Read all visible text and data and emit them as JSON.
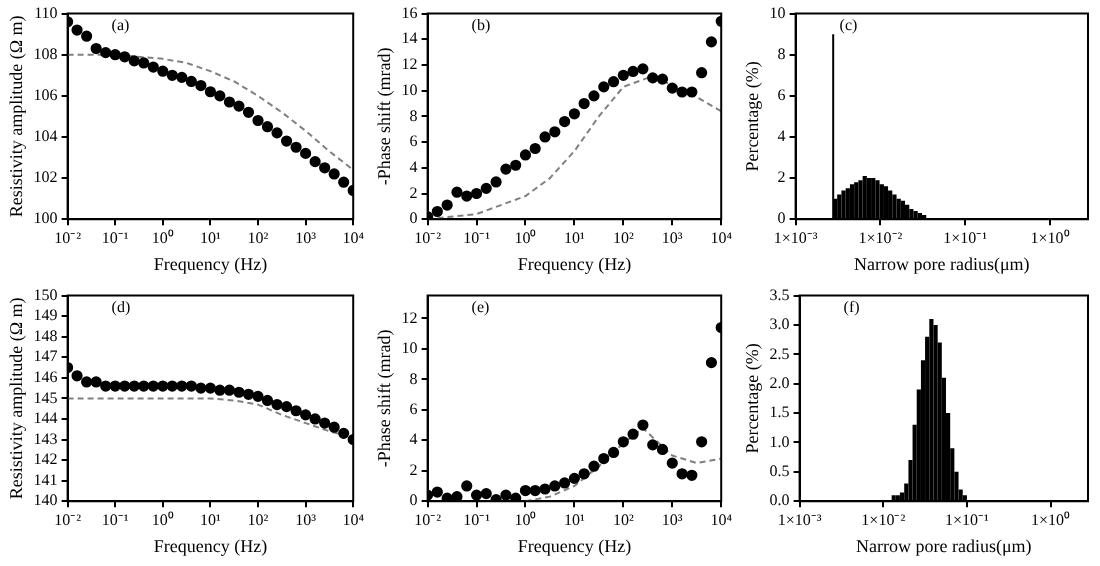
{
  "chart_data": [
    {
      "type": "scatter",
      "xlabel": "Frequency (Hz)",
      "ylabel": "Resistivity amplitude (Ω m)",
      "annotations": [
        "(a)"
      ],
      "log": "x",
      "grid": false,
      "xlim": [
        0.01,
        10000
      ],
      "xticks": [
        {
          "value": 0.01,
          "label": "10⁻²"
        },
        {
          "value": 0.1,
          "label": "10⁻¹"
        },
        {
          "value": 1,
          "label": "10⁰"
        },
        {
          "value": 10,
          "label": "10¹"
        },
        {
          "value": 100,
          "label": "10²"
        },
        {
          "value": 1000,
          "label": "10³"
        },
        {
          "value": 10000,
          "label": "10⁴"
        }
      ],
      "ylim": [
        100,
        110
      ],
      "yticks": [
        100,
        102,
        104,
        106,
        108,
        110
      ],
      "x": [
        0.01,
        0.0158,
        0.0251,
        0.0398,
        0.0631,
        0.1,
        0.158,
        0.251,
        0.398,
        0.631,
        1,
        1.58,
        2.51,
        3.98,
        6.31,
        10,
        15.8,
        25.1,
        39.8,
        63.1,
        100,
        158,
        251,
        398,
        631,
        1000,
        1585,
        2512,
        3981,
        6310,
        10000
      ],
      "series": [
        {
          "type": "scatter",
          "marker": "circle",
          "color": "#000000",
          "values": [
            109.6,
            109.2,
            108.9,
            108.3,
            108.1,
            108.0,
            107.9,
            107.7,
            107.6,
            107.4,
            107.2,
            107.0,
            106.9,
            106.7,
            106.5,
            106.2,
            106.0,
            105.7,
            105.5,
            105.2,
            104.8,
            104.5,
            104.2,
            103.8,
            103.5,
            103.2,
            102.8,
            102.5,
            102.2,
            101.8,
            101.4
          ]
        },
        {
          "type": "line",
          "marker": "none",
          "color": "#808080",
          "line_style": "dashed",
          "x": [
            0.01,
            0.1,
            1,
            3.16,
            10,
            31.6,
            100,
            316,
            1000,
            3162,
            10000
          ],
          "values": [
            108.0,
            108.0,
            107.8,
            107.6,
            107.2,
            106.7,
            106.0,
            105.2,
            104.3,
            103.3,
            102.4
          ]
        }
      ]
    },
    {
      "type": "scatter",
      "xlabel": "Frequency (Hz)",
      "ylabel": "-Phase shift (mrad)",
      "annotations": [
        "(b)"
      ],
      "log": "x",
      "grid": false,
      "xlim": [
        0.01,
        10000
      ],
      "xticks": [
        {
          "value": 0.01,
          "label": "10⁻²"
        },
        {
          "value": 0.1,
          "label": "10⁻¹"
        },
        {
          "value": 1,
          "label": "10⁰"
        },
        {
          "value": 10,
          "label": "10¹"
        },
        {
          "value": 100,
          "label": "10²"
        },
        {
          "value": 1000,
          "label": "10³"
        },
        {
          "value": 10000,
          "label": "10⁴"
        }
      ],
      "ylim": [
        0,
        16
      ],
      "yticks": [
        0,
        2,
        4,
        6,
        8,
        10,
        12,
        14,
        16
      ],
      "x": [
        0.01,
        0.0158,
        0.0251,
        0.0398,
        0.0631,
        0.1,
        0.158,
        0.251,
        0.398,
        0.631,
        1,
        1.58,
        2.51,
        3.98,
        6.31,
        10,
        15.8,
        25.1,
        39.8,
        63.1,
        100,
        158,
        251,
        398,
        631,
        1000,
        1585,
        2512,
        3981,
        6310,
        10000
      ],
      "series": [
        {
          "type": "scatter",
          "marker": "circle",
          "color": "#000000",
          "values": [
            0.2,
            0.6,
            1.1,
            2.1,
            1.8,
            2.0,
            2.4,
            2.9,
            3.9,
            4.2,
            5.0,
            5.5,
            6.4,
            6.8,
            7.6,
            8.2,
            9.0,
            9.6,
            10.3,
            10.7,
            11.2,
            11.5,
            11.7,
            11.0,
            10.9,
            10.2,
            9.9,
            9.9,
            11.4,
            13.8,
            15.4
          ]
        },
        {
          "type": "line",
          "marker": "none",
          "color": "#808080",
          "line_style": "dashed",
          "x": [
            0.01,
            0.1,
            1,
            3.16,
            10,
            31.6,
            100,
            316,
            1000,
            3162,
            10000
          ],
          "values": [
            0.0,
            0.4,
            1.8,
            3.2,
            5.3,
            8.0,
            10.3,
            11.0,
            10.5,
            9.5,
            8.4
          ]
        }
      ]
    },
    {
      "type": "histogram",
      "xlabel": "Narrow pore radius(μm)",
      "ylabel": "Percentage (%)",
      "annotations": [
        "(c)"
      ],
      "log": "x",
      "grid": false,
      "color": "#000000",
      "xlim": [
        0.001,
        2.8
      ],
      "xticks": [
        {
          "value": 0.001,
          "label": "1×10⁻³"
        },
        {
          "value": 0.01,
          "label": "1×10⁻²"
        },
        {
          "value": 0.1,
          "label": "1×10⁻¹"
        },
        {
          "value": 1,
          "label": "1×10⁰"
        }
      ],
      "ylim": [
        0,
        10
      ],
      "yticks": [
        0,
        2,
        4,
        6,
        8,
        10
      ],
      "bins": [
        0.0027,
        0.0028,
        0.00309,
        0.00347,
        0.00389,
        0.00437,
        0.0049,
        0.0055,
        0.00617,
        0.00692,
        0.00776,
        0.00871,
        0.00977,
        0.011,
        0.0123,
        0.0138,
        0.0155,
        0.0174,
        0.0195,
        0.0219,
        0.0245,
        0.0275,
        0.0309,
        0.0347
      ],
      "values": [
        9.0,
        1.0,
        1.2,
        1.4,
        1.5,
        1.7,
        1.8,
        1.9,
        2.1,
        2.0,
        2.0,
        1.9,
        1.7,
        1.6,
        1.4,
        1.2,
        1.0,
        0.9,
        0.7,
        0.5,
        0.4,
        0.3,
        0.2
      ]
    },
    {
      "type": "scatter",
      "xlabel": "Frequency (Hz)",
      "ylabel": "Resistivity amplitude (Ω m)",
      "annotations": [
        "(d)"
      ],
      "log": "x",
      "grid": false,
      "xlim": [
        0.01,
        10000
      ],
      "xticks": [
        {
          "value": 0.01,
          "label": "10⁻²"
        },
        {
          "value": 0.1,
          "label": "10⁻¹"
        },
        {
          "value": 1,
          "label": "10⁰"
        },
        {
          "value": 10,
          "label": "10¹"
        },
        {
          "value": 100,
          "label": "10²"
        },
        {
          "value": 1000,
          "label": "10³"
        },
        {
          "value": 10000,
          "label": "10⁴"
        }
      ],
      "ylim": [
        140,
        150
      ],
      "yticks": [
        140,
        141,
        142,
        143,
        144,
        145,
        146,
        147,
        148,
        149,
        150
      ],
      "x": [
        0.01,
        0.0158,
        0.0251,
        0.0398,
        0.0631,
        0.1,
        0.158,
        0.251,
        0.398,
        0.631,
        1,
        1.58,
        2.51,
        3.98,
        6.31,
        10,
        15.8,
        25.1,
        39.8,
        63.1,
        100,
        158,
        251,
        398,
        631,
        1000,
        1585,
        2512,
        3981,
        6310,
        10000
      ],
      "series": [
        {
          "type": "scatter",
          "marker": "circle",
          "color": "#000000",
          "values": [
            146.5,
            146.1,
            145.8,
            145.8,
            145.6,
            145.6,
            145.6,
            145.6,
            145.6,
            145.6,
            145.6,
            145.6,
            145.6,
            145.6,
            145.5,
            145.5,
            145.4,
            145.4,
            145.3,
            145.2,
            145.1,
            144.9,
            144.7,
            144.6,
            144.4,
            144.2,
            144.0,
            143.8,
            143.6,
            143.3,
            143.0
          ]
        },
        {
          "type": "line",
          "marker": "none",
          "color": "#808080",
          "line_style": "dashed",
          "x": [
            0.01,
            1,
            10,
            31.6,
            100,
            316,
            1000,
            3162,
            10000
          ],
          "values": [
            145.0,
            145.0,
            145.0,
            144.9,
            144.7,
            144.2,
            143.8,
            143.4,
            143.1
          ]
        }
      ]
    },
    {
      "type": "scatter",
      "xlabel": "Frequency (Hz)",
      "ylabel": "-Phase shift (mrad)",
      "annotations": [
        "(e)"
      ],
      "log": "x",
      "grid": false,
      "xlim": [
        0.01,
        10000
      ],
      "xticks": [
        {
          "value": 0.01,
          "label": "10⁻²"
        },
        {
          "value": 0.1,
          "label": "10⁻¹"
        },
        {
          "value": 1,
          "label": "10⁰"
        },
        {
          "value": 10,
          "label": "10¹"
        },
        {
          "value": 100,
          "label": "10²"
        },
        {
          "value": 1000,
          "label": "10³"
        },
        {
          "value": 10000,
          "label": "10⁴"
        }
      ],
      "ylim": [
        0,
        13.5
      ],
      "yticks": [
        0,
        2,
        4,
        6,
        8,
        10,
        12
      ],
      "x": [
        0.01,
        0.0158,
        0.0251,
        0.0398,
        0.0631,
        0.1,
        0.158,
        0.251,
        0.398,
        0.631,
        1,
        1.58,
        2.51,
        3.98,
        6.31,
        10,
        15.8,
        25.1,
        39.8,
        63.1,
        100,
        158,
        251,
        398,
        631,
        1000,
        1585,
        2512,
        3981,
        6310,
        10000
      ],
      "series": [
        {
          "type": "scatter",
          "marker": "circle",
          "color": "#000000",
          "values": [
            0.4,
            0.6,
            0.2,
            0.3,
            1.0,
            0.4,
            0.5,
            0.1,
            0.4,
            0.2,
            0.7,
            0.7,
            0.8,
            1.0,
            1.2,
            1.5,
            1.8,
            2.3,
            2.8,
            3.2,
            3.9,
            4.4,
            5.0,
            3.7,
            3.4,
            2.5,
            1.8,
            1.7,
            3.9,
            9.1,
            11.4
          ]
        },
        {
          "type": "line",
          "marker": "none",
          "color": "#808080",
          "line_style": "dashed",
          "x": [
            1,
            3.16,
            10,
            31.6,
            100,
            250,
            1000,
            3162,
            10000
          ],
          "values": [
            0.0,
            0.3,
            1.0,
            2.3,
            3.8,
            4.8,
            3.0,
            2.5,
            2.8
          ]
        }
      ]
    },
    {
      "type": "histogram",
      "xlabel": "Narrow pore radius(μm)",
      "ylabel": "Percentage (%)",
      "annotations": [
        "(f)"
      ],
      "log": "x",
      "grid": false,
      "color": "#000000",
      "xlim": [
        0.001,
        2.8
      ],
      "xticks": [
        {
          "value": 0.001,
          "label": "1×10⁻³"
        },
        {
          "value": 0.01,
          "label": "1×10⁻²"
        },
        {
          "value": 0.1,
          "label": "1×10⁻¹"
        },
        {
          "value": 1,
          "label": "1×10⁰"
        }
      ],
      "ylim": [
        0,
        3.5
      ],
      "yticks": [
        {
          "value": 0,
          "label": "0.0"
        },
        {
          "value": 0.5,
          "label": "0.5"
        },
        {
          "value": 1,
          "label": "1.0"
        },
        {
          "value": 1.5,
          "label": "1.5"
        },
        {
          "value": 2,
          "label": "2.0"
        },
        {
          "value": 2.5,
          "label": "2.5"
        },
        {
          "value": 3,
          "label": "3.0"
        },
        {
          "value": 3.5,
          "label": "3.5"
        }
      ],
      "bins": [
        0.0126,
        0.0141,
        0.0158,
        0.0178,
        0.02,
        0.0224,
        0.0251,
        0.0282,
        0.0316,
        0.0355,
        0.0398,
        0.0447,
        0.0501,
        0.0562,
        0.0631,
        0.0708,
        0.0794,
        0.0891,
        0.1
      ],
      "values": [
        0.1,
        0.1,
        0.15,
        0.3,
        0.7,
        1.3,
        1.9,
        2.4,
        2.8,
        3.1,
        3.0,
        2.7,
        2.1,
        1.5,
        0.9,
        0.5,
        0.2,
        0.1
      ]
    }
  ]
}
